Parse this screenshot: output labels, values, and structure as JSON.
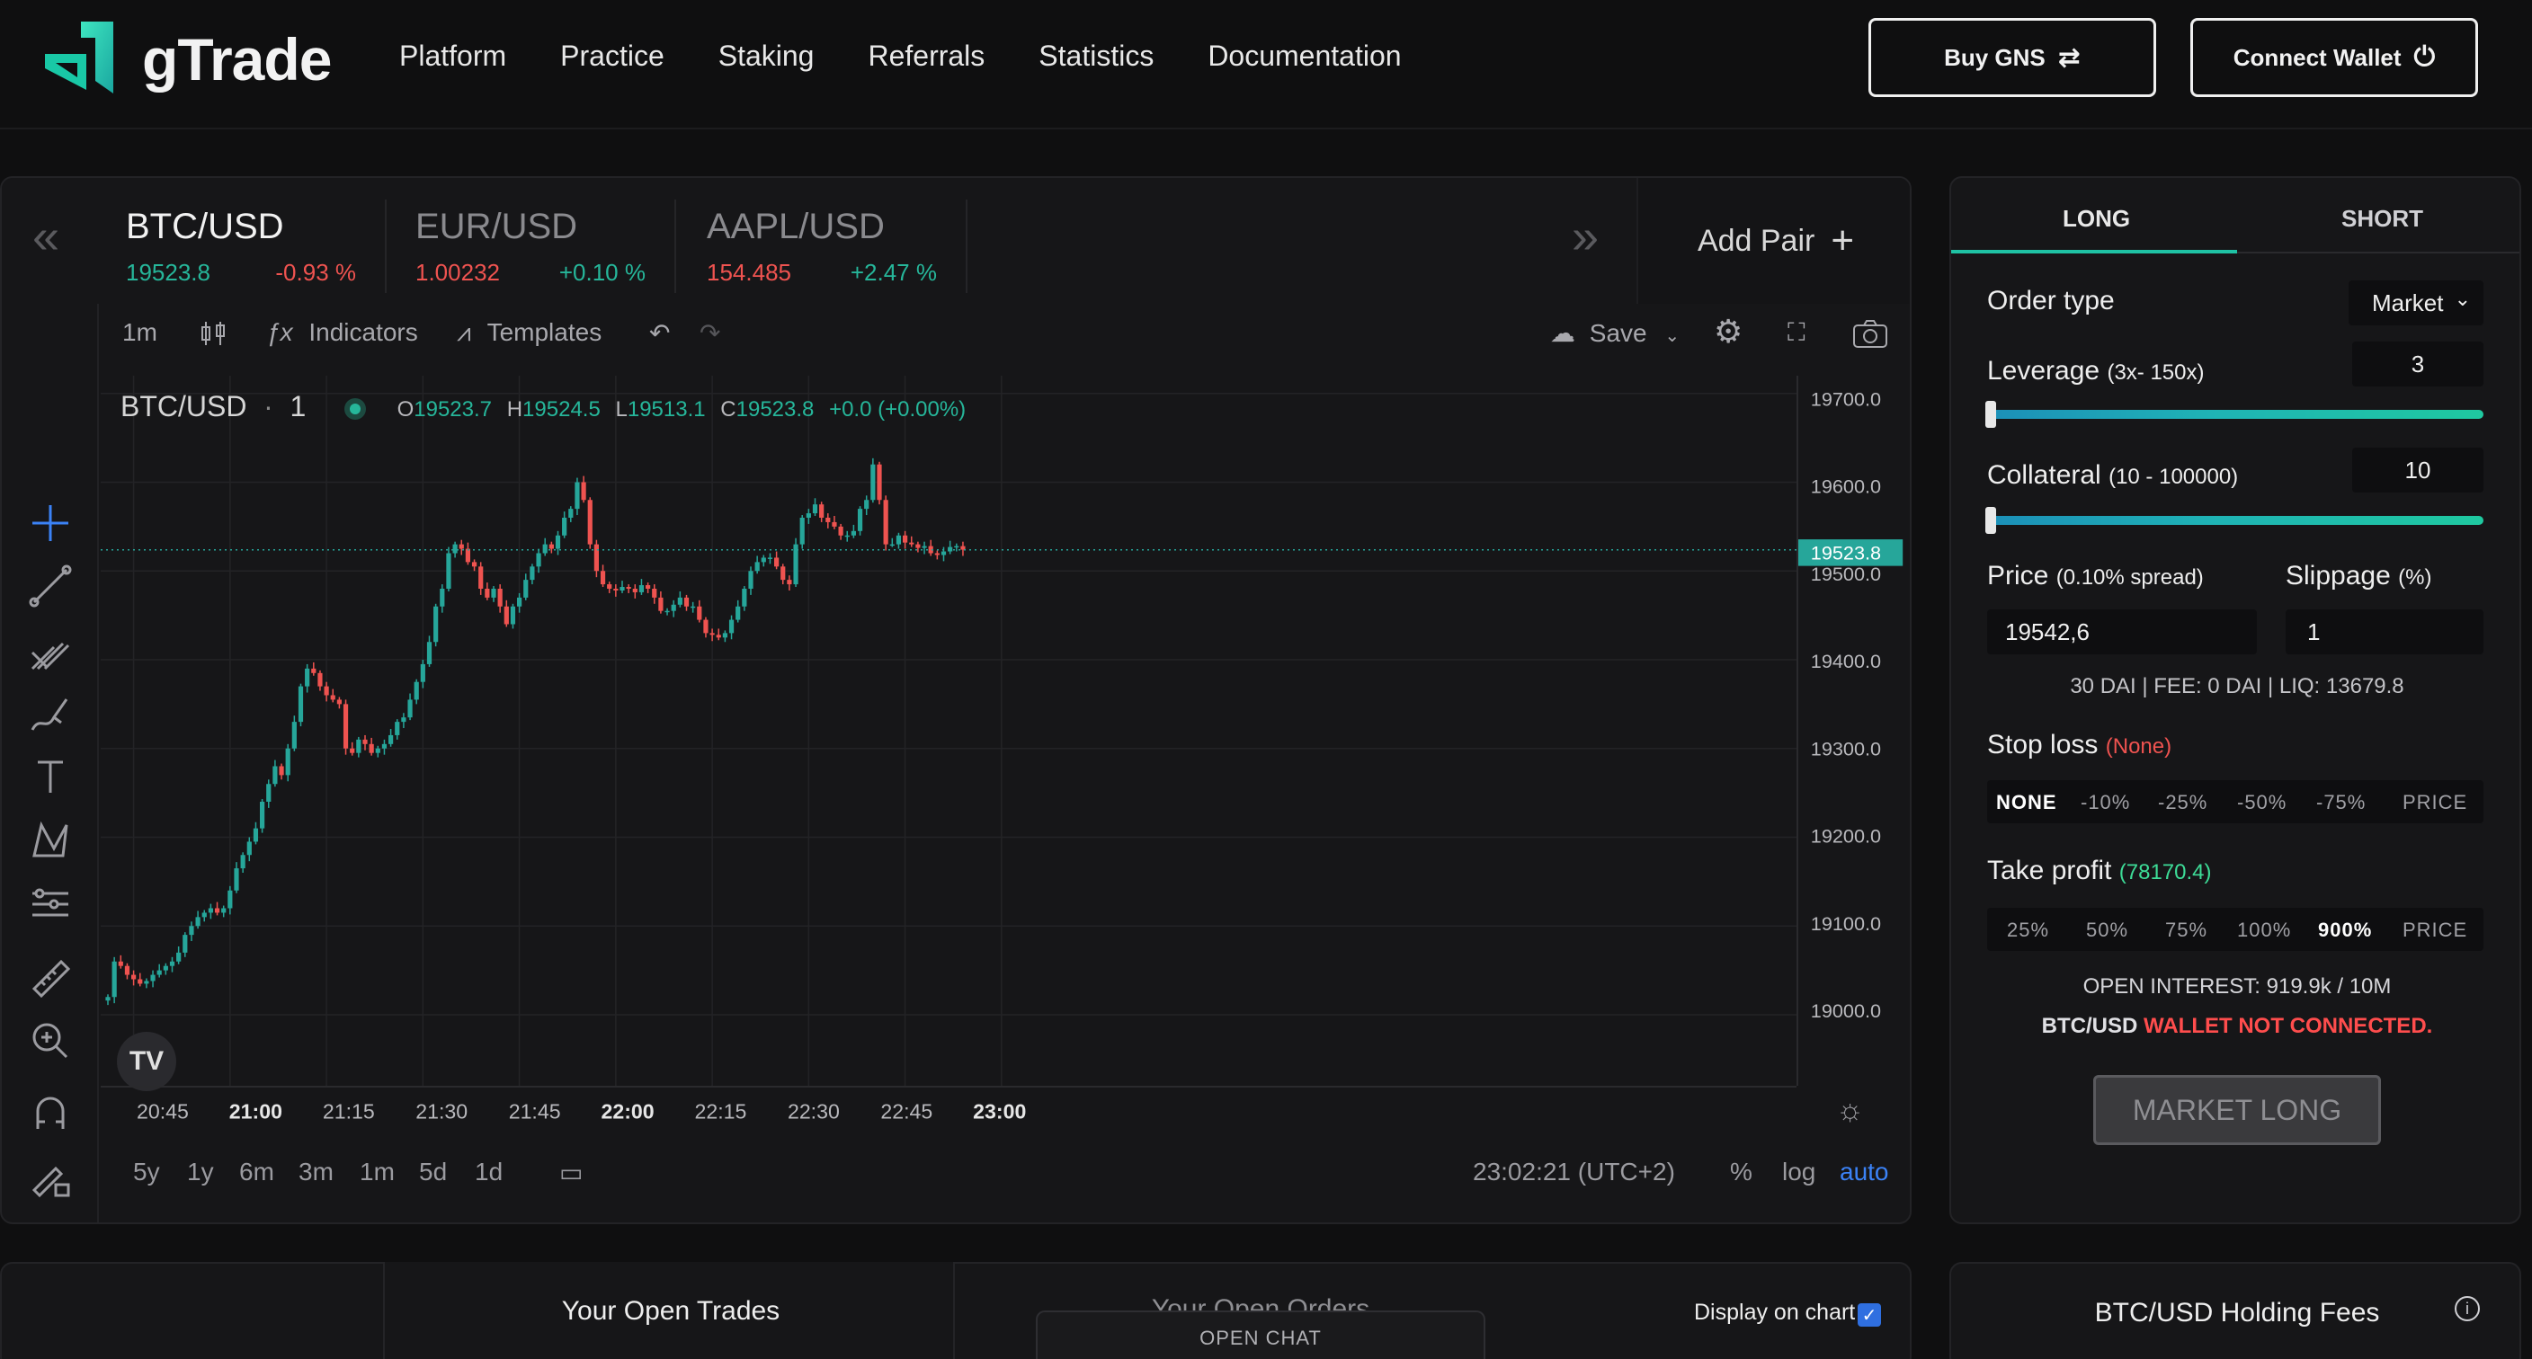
{
  "header": {
    "brand": "gTrade",
    "nav": [
      "Platform",
      "Practice",
      "Staking",
      "Referrals",
      "Statistics",
      "Documentation"
    ],
    "buy_label": "Buy GNS",
    "connect_label": "Connect Wallet"
  },
  "pairs": [
    {
      "name": "BTC/USD",
      "price": "19523.8",
      "change": "-0.93 %",
      "price_color": "green",
      "change_color": "red"
    },
    {
      "name": "EUR/USD",
      "price": "1.00232",
      "change": "+0.10 %",
      "price_color": "red",
      "change_color": "green"
    },
    {
      "name": "AAPL/USD",
      "price": "154.485",
      "change": "+2.47 %",
      "price_color": "red",
      "change_color": "green"
    }
  ],
  "add_pair_label": "Add Pair",
  "toolbar": {
    "interval": "1m",
    "indicators": "Indicators",
    "templates": "Templates",
    "save": "Save"
  },
  "legend": {
    "symbol": "BTC/USD",
    "interval_num": "1",
    "o_label": "O",
    "o": "19523.7",
    "h_label": "H",
    "h": "19524.5",
    "l_label": "L",
    "l": "19513.1",
    "c_label": "C",
    "c": "19523.8",
    "change": "+0.0 (+0.00%)"
  },
  "bottom_bar": {
    "ranges": [
      "5y",
      "1y",
      "6m",
      "3m",
      "1m",
      "5d",
      "1d"
    ],
    "clock": "23:02:21 (UTC+2)",
    "percent": "%",
    "log": "log",
    "auto": "auto"
  },
  "chart_data": {
    "type": "candlestick",
    "ylim": [
      18920,
      19720
    ],
    "yticks": [
      "19700.0",
      "19600.0",
      "19500.0",
      "19400.0",
      "19300.0",
      "19200.0",
      "19100.0",
      "19000.0"
    ],
    "xticks": [
      "20:45",
      "21:00",
      "21:15",
      "21:30",
      "21:45",
      "22:00",
      "22:15",
      "22:30",
      "22:45",
      "23:00"
    ],
    "bold_xticks": [
      "21:00",
      "22:00",
      "23:00"
    ],
    "last_price": "19523.8",
    "up_color": "#26a69a",
    "down_color": "#ef5350",
    "x_start": "20:41",
    "interval_minutes": 1,
    "closes": [
      19020,
      19060,
      19055,
      19045,
      19040,
      19035,
      19038,
      19045,
      19050,
      19055,
      19060,
      19070,
      19090,
      19100,
      19110,
      19115,
      19120,
      19115,
      19120,
      19140,
      19165,
      19180,
      19195,
      19210,
      19240,
      19260,
      19280,
      19270,
      19300,
      19330,
      19370,
      19390,
      19385,
      19370,
      19360,
      19355,
      19350,
      19300,
      19295,
      19310,
      19305,
      19295,
      19300,
      19305,
      19315,
      19330,
      19335,
      19355,
      19375,
      19395,
      19420,
      19460,
      19480,
      19520,
      19530,
      19525,
      19510,
      19505,
      19480,
      19470,
      19480,
      19460,
      19440,
      19460,
      19470,
      19490,
      19505,
      19520,
      19530,
      19525,
      19540,
      19560,
      19570,
      19600,
      19580,
      19530,
      19500,
      19485,
      19480,
      19478,
      19482,
      19480,
      19476,
      19484,
      19480,
      19470,
      19455,
      19455,
      19462,
      19470,
      19460,
      19460,
      19445,
      19430,
      19428,
      19425,
      19430,
      19445,
      19460,
      19480,
      19500,
      19510,
      19515,
      19515,
      19505,
      19490,
      19485,
      19530,
      19560,
      19565,
      19575,
      19560,
      19555,
      19550,
      19540,
      19540,
      19545,
      19570,
      19580,
      19620,
      19580,
      19530,
      19530,
      19540,
      19532,
      19530,
      19526,
      19528,
      19520,
      19518,
      19522,
      19527,
      19528,
      19524
    ]
  },
  "trade": {
    "tab_long": "LONG",
    "tab_short": "SHORT",
    "order_type_label": "Order type",
    "order_type_value": "Market",
    "leverage_label": "Leverage",
    "leverage_range": "(3x- 150x)",
    "leverage_value": "3",
    "leverage_fraction": 0.0,
    "collateral_label": "Collateral",
    "collateral_range": "(10 - 100000)",
    "collateral_value": "10",
    "collateral_fraction": 0.0,
    "price_label": "Price",
    "price_spread": "(0.10% spread)",
    "price_value": "19542,6",
    "slippage_label": "Slippage",
    "slippage_unit": "(%)",
    "slippage_value": "1",
    "fees_line": "30 DAI | FEE: 0 DAI | LIQ: 13679.8",
    "stop_loss_label": "Stop loss",
    "stop_loss_value": "(None)",
    "sl_options": [
      "NONE",
      "-10%",
      "-25%",
      "-50%",
      "-75%",
      "PRICE"
    ],
    "take_profit_label": "Take profit",
    "take_profit_value": "(78170.4)",
    "tp_options": [
      "25%",
      "50%",
      "75%",
      "100%",
      "900%",
      "PRICE"
    ],
    "open_interest": "OPEN INTEREST: 919.9k / 10M",
    "wallet_pair": "BTC/USD",
    "wallet_msg": "WALLET NOT CONNECTED.",
    "market_button": "MARKET LONG"
  },
  "bottom": {
    "open_trades": "Your Open Trades",
    "open_orders": "Your Open Orders",
    "display_on_chart": "Display on chart",
    "open_chat": "OPEN CHAT",
    "holding_fees": "BTC/USD Holding Fees"
  }
}
